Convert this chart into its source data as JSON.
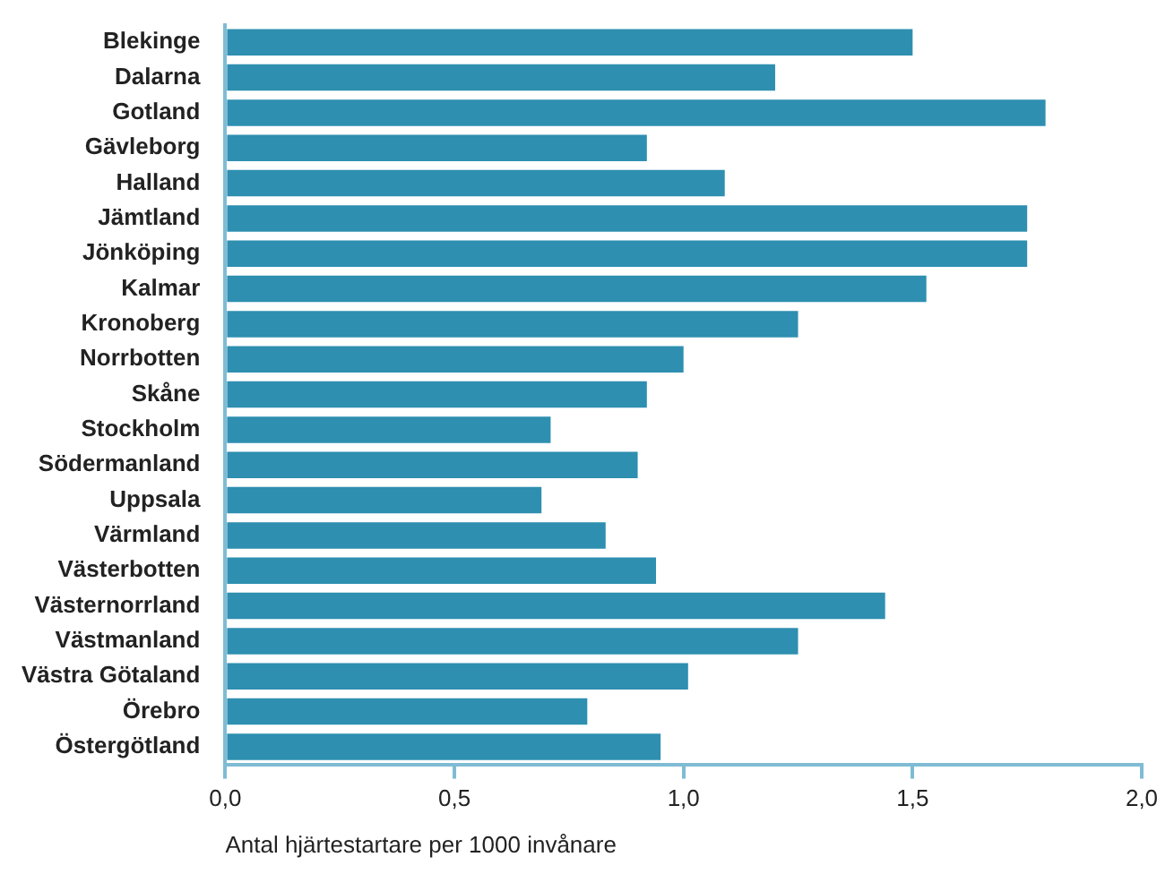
{
  "chart_data": {
    "type": "bar",
    "orientation": "horizontal",
    "xlabel": "Antal hjärtestartare per 1000 invånare",
    "categories": [
      "Blekinge",
      "Dalarna",
      "Gotland",
      "Gävleborg",
      "Halland",
      "Jämtland",
      "Jönköping",
      "Kalmar",
      "Kronoberg",
      "Norrbotten",
      "Skåne",
      "Stockholm",
      "Södermanland",
      "Uppsala",
      "Värmland",
      "Västerbotten",
      "Västernorrland",
      "Västmanland",
      "Västra Götaland",
      "Örebro",
      "Östergötland"
    ],
    "values": [
      1.5,
      1.2,
      1.79,
      0.92,
      1.09,
      1.75,
      1.75,
      1.53,
      1.25,
      1.0,
      0.92,
      0.71,
      0.9,
      0.69,
      0.83,
      0.94,
      1.44,
      1.25,
      1.01,
      0.79,
      0.95
    ],
    "color": "#2e8fb0",
    "xlim": [
      0,
      2
    ],
    "xticks": [
      {
        "value": 0,
        "label": "0,0"
      },
      {
        "value": 0.5,
        "label": "0,5"
      },
      {
        "value": 1,
        "label": "1,0"
      },
      {
        "value": 1.5,
        "label": "1,5"
      },
      {
        "value": 2,
        "label": "2,0"
      }
    ],
    "grid": false,
    "legend": false
  }
}
